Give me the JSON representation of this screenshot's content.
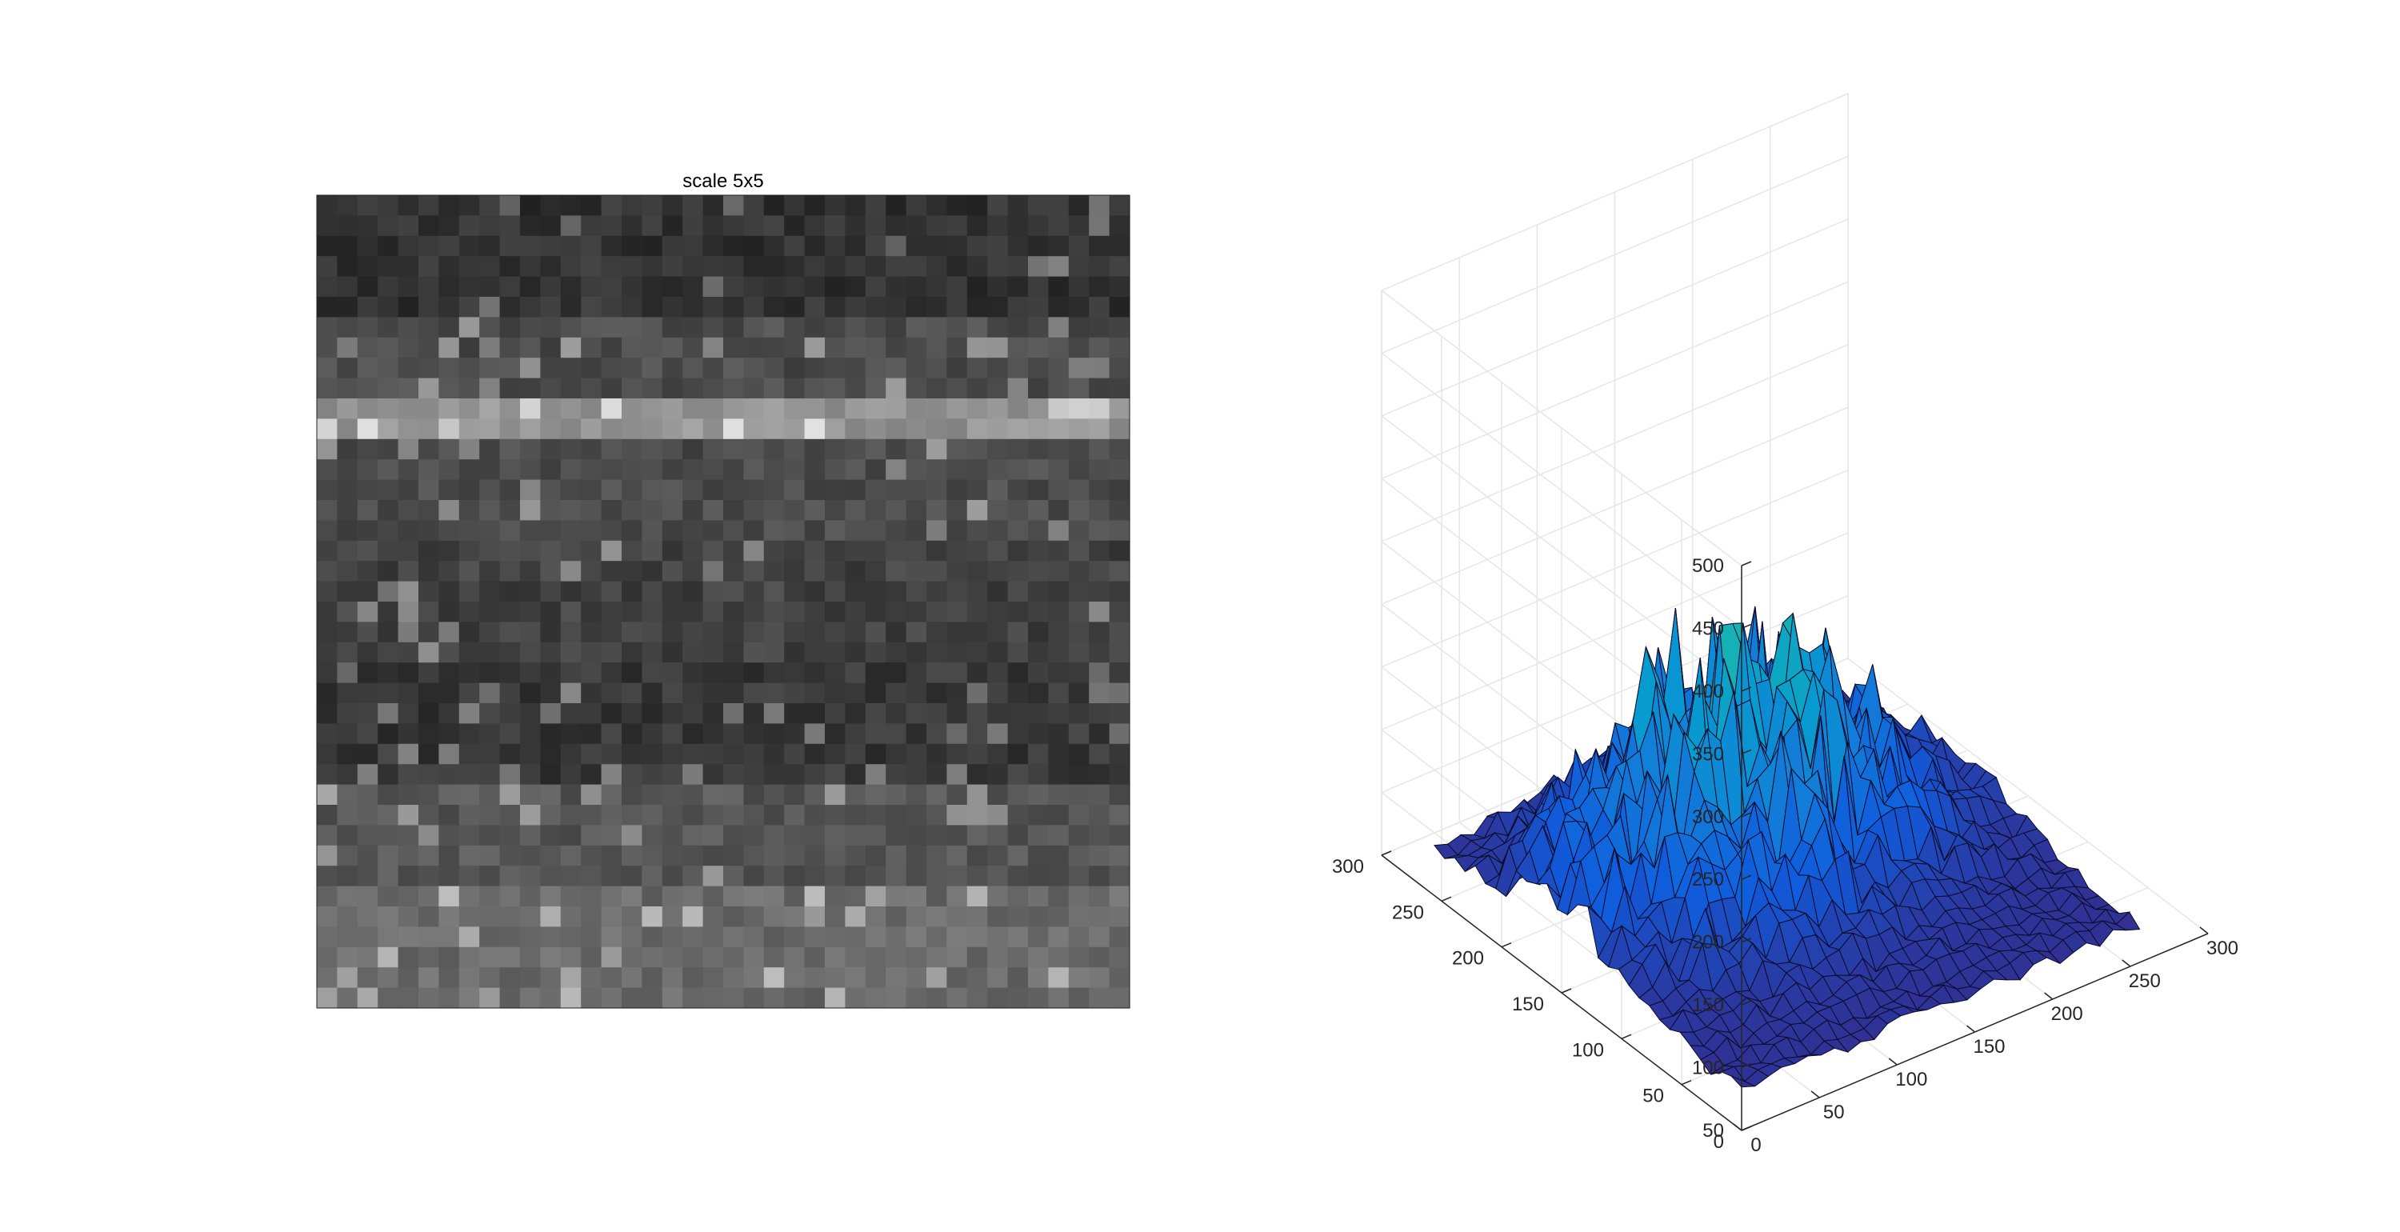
{
  "chart_data": [
    {
      "type": "heatmap",
      "title": "scale 5x5",
      "colormap": "gray",
      "grid": false,
      "rows": 40,
      "cols": 40,
      "bands": [
        {
          "row_start": 0.0,
          "row_end": 0.16,
          "intensity": 0.2
        },
        {
          "row_start": 0.16,
          "row_end": 0.25,
          "intensity": 0.3
        },
        {
          "row_start": 0.25,
          "row_end": 0.29,
          "intensity": 0.58
        },
        {
          "row_start": 0.29,
          "row_end": 0.42,
          "intensity": 0.3
        },
        {
          "row_start": 0.42,
          "row_end": 0.58,
          "intensity": 0.26
        },
        {
          "row_start": 0.58,
          "row_end": 0.72,
          "intensity": 0.22
        },
        {
          "row_start": 0.72,
          "row_end": 0.86,
          "intensity": 0.34
        },
        {
          "row_start": 0.86,
          "row_end": 1.0,
          "intensity": 0.42
        }
      ]
    },
    {
      "type": "surface",
      "colormap": "parula",
      "grid": true,
      "xlim": [
        0,
        300
      ],
      "ylim": [
        0,
        300
      ],
      "zlim": [
        50,
        500
      ],
      "x_ticks": [
        0,
        50,
        100,
        150,
        200,
        250,
        300
      ],
      "y_ticks": [
        0,
        50,
        100,
        150,
        200,
        250,
        300
      ],
      "z_ticks": [
        50,
        100,
        150,
        200,
        250,
        300,
        350,
        400,
        450,
        500
      ],
      "surface_range": {
        "x": [
          0,
          256
        ],
        "y": [
          0,
          256
        ],
        "z": [
          50,
          320
        ]
      },
      "peak_z": 320,
      "base_z": 55
    }
  ]
}
